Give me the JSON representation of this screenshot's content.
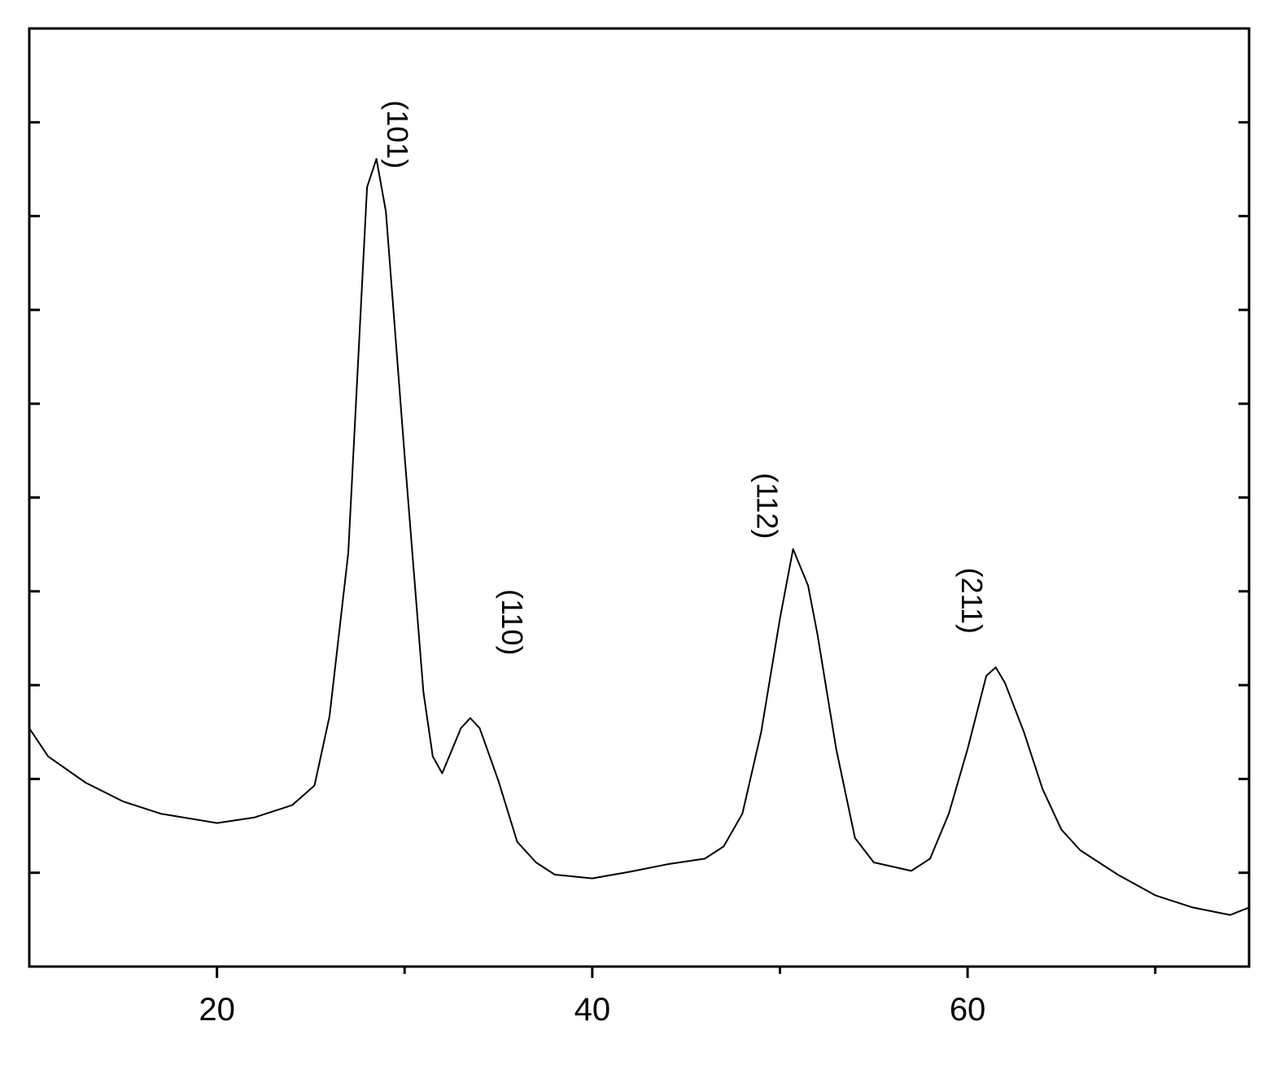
{
  "chart_data": {
    "type": "line",
    "x": [
      10,
      11,
      13,
      15,
      17,
      20,
      22,
      24,
      25.2,
      26,
      27,
      28,
      28.5,
      29,
      30,
      31,
      31.5,
      32,
      33,
      33.5,
      34,
      35,
      36,
      37,
      38,
      40,
      42,
      44,
      46,
      47,
      48,
      49,
      50,
      50.7,
      51.5,
      52,
      53,
      54,
      55,
      57,
      58,
      59,
      60,
      61,
      61.5,
      62,
      63,
      64,
      65,
      66,
      68,
      70,
      72,
      74,
      75
    ],
    "series": [
      {
        "color": "#000000",
        "values": [
          2.54,
          2.24,
          1.96,
          1.76,
          1.63,
          1.53,
          1.59,
          1.72,
          1.93,
          2.67,
          4.41,
          8.31,
          8.61,
          8.05,
          5.45,
          2.93,
          2.24,
          2.06,
          2.54,
          2.65,
          2.54,
          1.98,
          1.33,
          1.11,
          0.98,
          0.94,
          1.01,
          1.09,
          1.15,
          1.28,
          1.63,
          2.5,
          3.71,
          4.45,
          4.06,
          3.54,
          2.32,
          1.37,
          1.11,
          1.02,
          1.15,
          1.63,
          2.32,
          3.1,
          3.19,
          3.02,
          2.5,
          1.89,
          1.46,
          1.24,
          0.98,
          0.76,
          0.63,
          0.55,
          0.63
        ]
      }
    ],
    "xlim": [
      10,
      75
    ],
    "xticks": [
      20,
      40,
      60
    ],
    "xminor_ticks": [
      30,
      50,
      70
    ],
    "ylim": [
      0,
      10
    ],
    "yticks": [
      1,
      2,
      3,
      4,
      5,
      6,
      7,
      8,
      9
    ],
    "ytick_labels": false,
    "annotations": [
      {
        "text": "(101)",
        "x": 29.5,
        "y": 8.87
      },
      {
        "text": "(110)",
        "x": 35.6,
        "y": 3.67
      },
      {
        "text": "(112)",
        "x": 49.2,
        "y": 4.91
      },
      {
        "text": "(211)",
        "x": 60.1,
        "y": 3.9
      }
    ]
  }
}
